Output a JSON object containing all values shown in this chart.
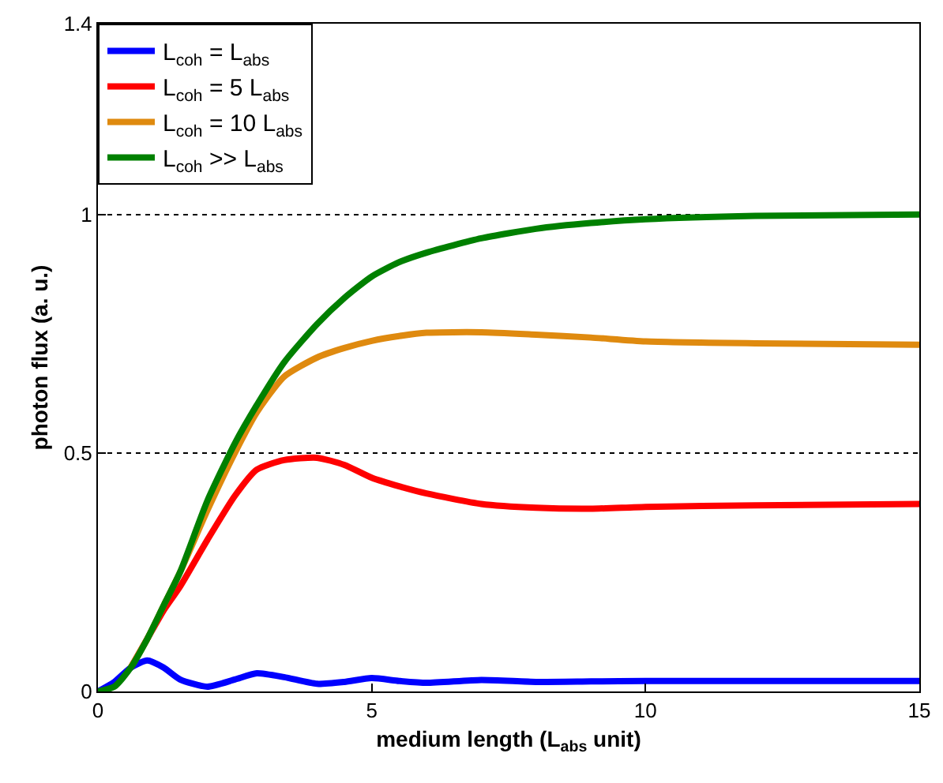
{
  "chart_data": {
    "type": "line",
    "xlabel": "medium length (L$_{abs}$ unit)",
    "ylabel": "photon flux (a. u.)",
    "xlim": [
      0,
      15
    ],
    "ylim": [
      0,
      1.4
    ],
    "xticks": [
      0,
      5,
      10,
      15
    ],
    "yticks": [
      0,
      0.5,
      1,
      1.4
    ],
    "grid": "y",
    "legend": "top left",
    "line_style": "solid",
    "marker": "none",
    "x": [
      0,
      0.3,
      0.6,
      0.9,
      1.2,
      1.5,
      2,
      2.5,
      2.9,
      3.4,
      4,
      4.5,
      5,
      5.5,
      6,
      7,
      8,
      9,
      10,
      12,
      15
    ],
    "series": [
      {
        "name": "L$_{coh}$ = L$_{abs}$",
        "color": "#0000ff",
        "values": [
          0,
          0.02,
          0.05,
          0.065,
          0.05,
          0.025,
          0.01,
          0.025,
          0.038,
          0.03,
          0.016,
          0.02,
          0.028,
          0.022,
          0.018,
          0.024,
          0.02,
          0.021,
          0.022,
          0.022,
          0.022
        ]
      },
      {
        "name": "L$_{coh}$ = 5 L$_{abs}$",
        "color": "#ff0000",
        "values": [
          null,
          null,
          0.05,
          0.11,
          0.17,
          0.22,
          0.318,
          0.41,
          0.465,
          0.485,
          0.49,
          0.475,
          0.448,
          0.43,
          0.415,
          0.393,
          0.385,
          0.383,
          0.387,
          0.39,
          0.393
        ]
      },
      {
        "name": "L$_{coh}$ = 10 L$_{abs}$",
        "color": "#df8a0f",
        "values": [
          null,
          null,
          0.05,
          0.11,
          0.18,
          0.25,
          0.38,
          0.5,
          0.585,
          0.66,
          0.7,
          0.72,
          0.735,
          0.745,
          0.752,
          0.753,
          0.748,
          0.742,
          0.734,
          0.73,
          0.727
        ]
      },
      {
        "name": "L$_{coh}$ >> L$_{abs}$",
        "color": "#008000",
        "values": [
          0,
          0.01,
          0.05,
          0.11,
          0.18,
          0.25,
          0.4,
          0.52,
          0.6,
          0.69,
          0.77,
          0.825,
          0.87,
          0.9,
          0.92,
          0.95,
          0.97,
          0.982,
          0.99,
          0.997,
          1.0
        ]
      }
    ]
  }
}
